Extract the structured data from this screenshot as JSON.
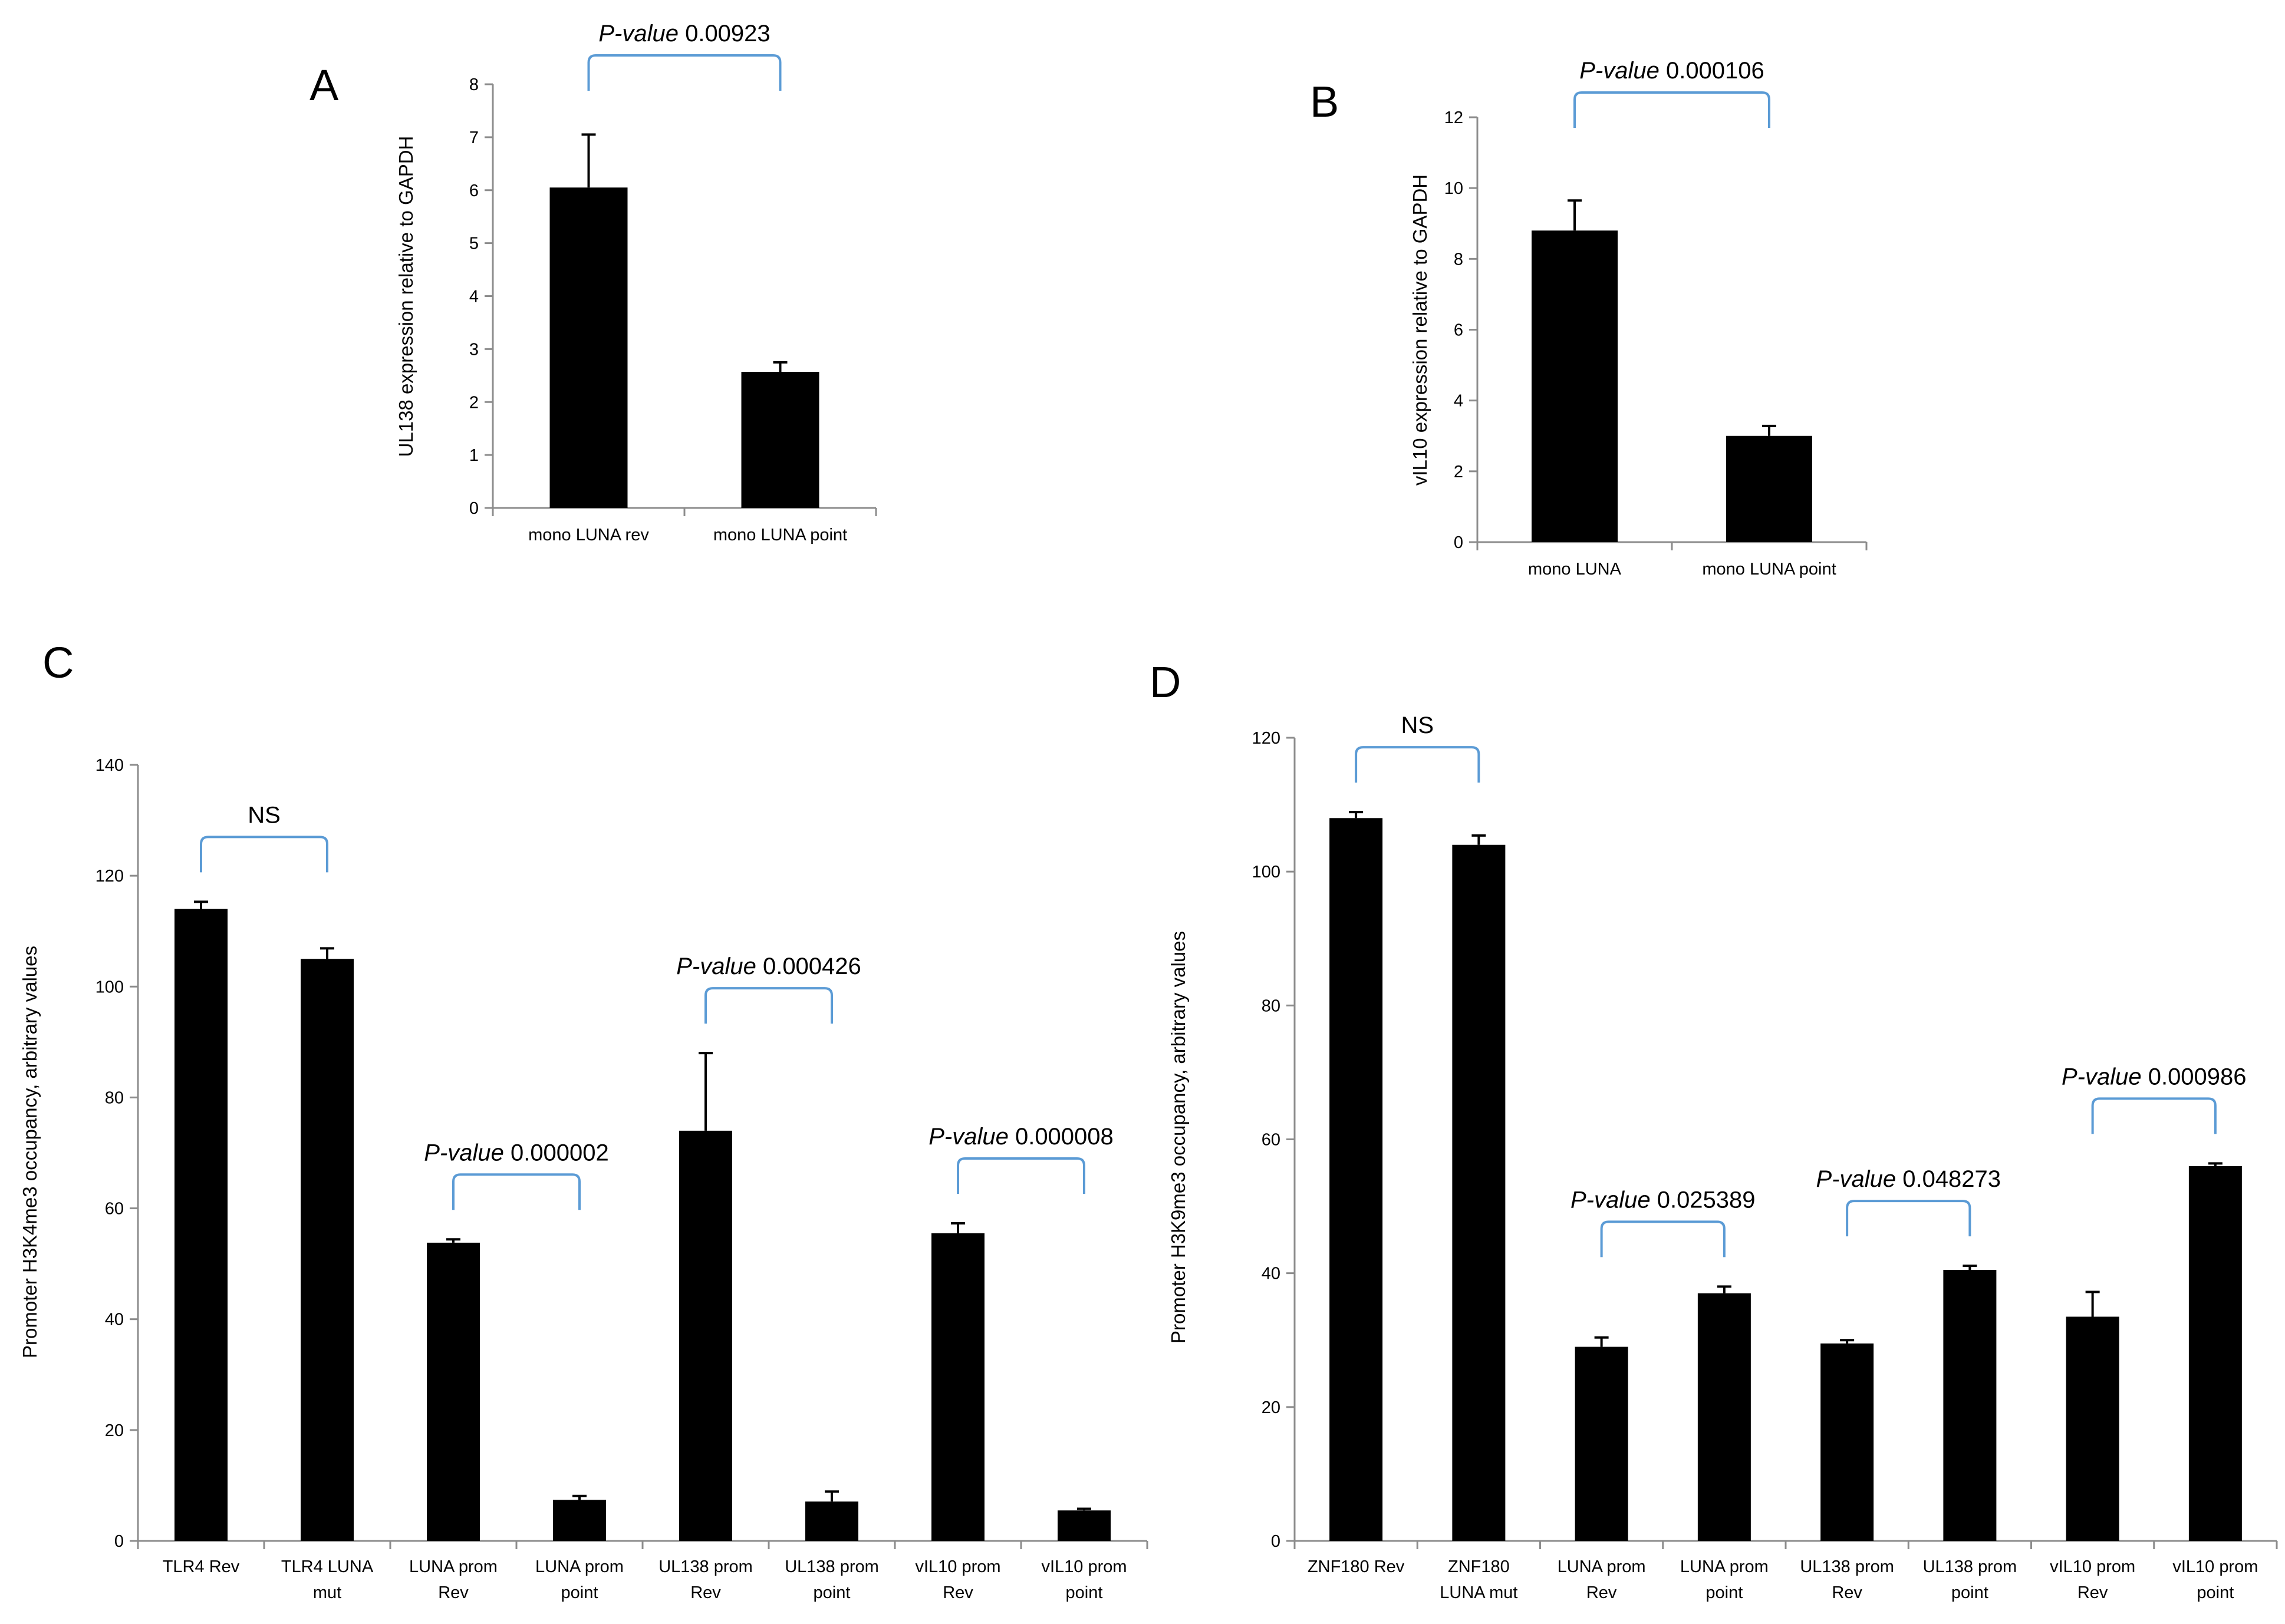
{
  "chart_data": [
    {
      "type": "bar",
      "panel": "A",
      "ylabel": "UL138 expression relative to GAPDH",
      "ylim": [
        0,
        8
      ],
      "yticks": [
        0,
        1,
        2,
        3,
        4,
        5,
        6,
        7,
        8
      ],
      "categories": [
        [
          "mono LUNA rev"
        ],
        [
          "mono LUNA point"
        ]
      ],
      "values": [
        6.05,
        2.57
      ],
      "errors": [
        1.0,
        0.18
      ],
      "comparisons": [
        {
          "from": 0,
          "to": 1,
          "prefix": "P-value",
          "value": "0.00923"
        }
      ]
    },
    {
      "type": "bar",
      "panel": "B",
      "ylabel": "vIL10 expression relative to GAPDH",
      "ylim": [
        0,
        12
      ],
      "yticks": [
        0,
        2,
        4,
        6,
        8,
        10,
        12
      ],
      "categories": [
        [
          "mono LUNA"
        ],
        [
          "mono LUNA point"
        ]
      ],
      "values": [
        8.8,
        3.0
      ],
      "errors": [
        0.85,
        0.28
      ],
      "comparisons": [
        {
          "from": 0,
          "to": 1,
          "prefix": "P-value",
          "value": "0.000106"
        }
      ]
    },
    {
      "type": "bar",
      "panel": "C",
      "ylabel": "Promoter H3K4me3 occupancy, arbitrary values",
      "ylim": [
        0,
        140
      ],
      "yticks": [
        0,
        20,
        40,
        60,
        80,
        100,
        120,
        140
      ],
      "categories": [
        [
          "TLR4 Rev"
        ],
        [
          "TLR4 LUNA",
          "mut"
        ],
        [
          "LUNA prom",
          "Rev"
        ],
        [
          "LUNA prom",
          "point"
        ],
        [
          "UL138 prom",
          "Rev"
        ],
        [
          "UL138 prom",
          "point"
        ],
        [
          "vIL10 prom",
          "Rev"
        ],
        [
          "vIL10 prom",
          "point"
        ]
      ],
      "values": [
        114,
        105,
        53.8,
        7.4,
        74,
        7.1,
        55.5,
        5.5
      ],
      "errors": [
        1.3,
        1.9,
        0.6,
        0.7,
        14,
        1.8,
        1.8,
        0.3
      ],
      "comparisons": [
        {
          "from": 0,
          "to": 1,
          "prefix": "",
          "value": "NS"
        },
        {
          "from": 2,
          "to": 3,
          "prefix": "P-value",
          "value": "0.000002"
        },
        {
          "from": 4,
          "to": 5,
          "prefix": "P-value",
          "value": "0.000426"
        },
        {
          "from": 6,
          "to": 7,
          "prefix": "P-value",
          "value": "0.000008"
        }
      ]
    },
    {
      "type": "bar",
      "panel": "D",
      "ylabel": "Promoter H3K9me3 occupancy, arbitrary values",
      "ylim": [
        0,
        120
      ],
      "yticks": [
        0,
        20,
        40,
        60,
        80,
        100,
        120
      ],
      "categories": [
        [
          "ZNF180 Rev"
        ],
        [
          "ZNF180",
          "LUNA mut"
        ],
        [
          "LUNA prom",
          "Rev"
        ],
        [
          "LUNA prom",
          "point"
        ],
        [
          "UL138 prom",
          "Rev"
        ],
        [
          "UL138 prom",
          "point"
        ],
        [
          "vIL10 prom",
          "Rev"
        ],
        [
          "vIL10 prom",
          "point"
        ]
      ],
      "values": [
        108,
        104,
        29,
        37,
        29.5,
        40.5,
        33.5,
        56
      ],
      "errors": [
        0.9,
        1.4,
        1.4,
        1.0,
        0.5,
        0.6,
        3.7,
        0.4
      ],
      "comparisons": [
        {
          "from": 0,
          "to": 1,
          "prefix": "",
          "value": "NS"
        },
        {
          "from": 2,
          "to": 3,
          "prefix": "P-value",
          "value": "0.025389"
        },
        {
          "from": 4,
          "to": 5,
          "prefix": "P-value",
          "value": "0.048273"
        },
        {
          "from": 6,
          "to": 7,
          "prefix": "P-value",
          "value": "0.000986"
        }
      ]
    }
  ]
}
